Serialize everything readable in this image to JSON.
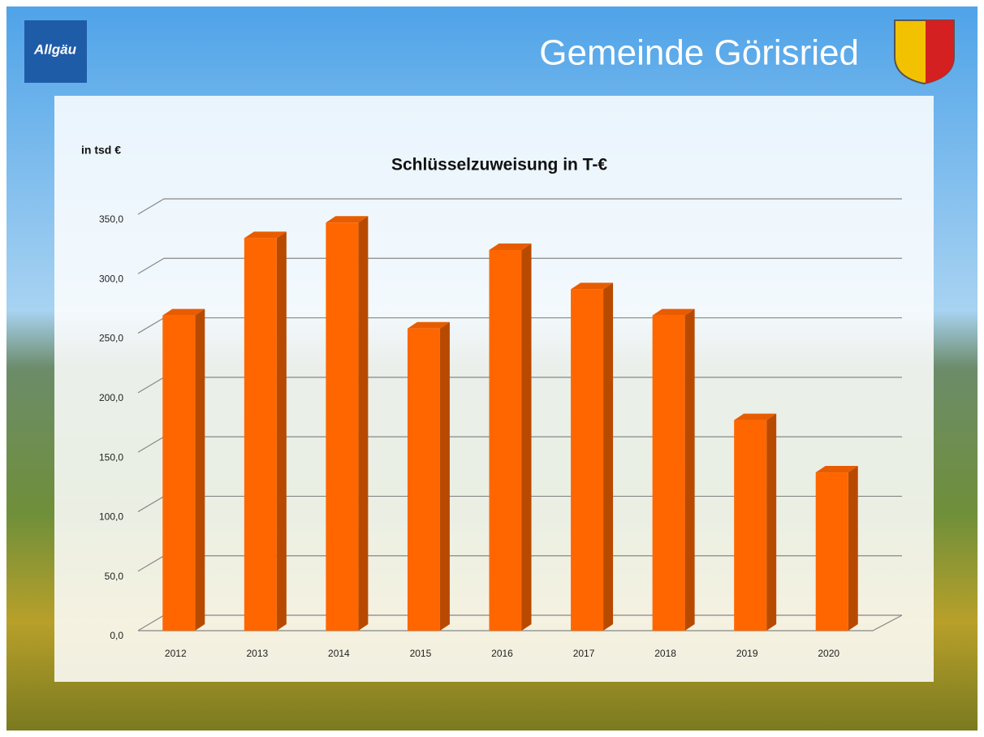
{
  "header": {
    "logo_text": "Allgäu",
    "title": "Gemeinde Görisried"
  },
  "chart_data": {
    "type": "bar",
    "title": "Schlüsselzuweisung  in T-€",
    "y_unit_label": "in tsd €",
    "categories": [
      "2012",
      "2013",
      "2014",
      "2015",
      "2016",
      "2017",
      "2018",
      "2019",
      "2020"
    ],
    "values": [
      265,
      330,
      343,
      254,
      320,
      287,
      265,
      177,
      133
    ],
    "color": "#ff6600",
    "ylim": [
      0,
      350
    ],
    "yticks": [
      {
        "value": 0,
        "label": "0,0"
      },
      {
        "value": 50,
        "label": "50,0"
      },
      {
        "value": 100,
        "label": "100,0"
      },
      {
        "value": 150,
        "label": "150,0"
      },
      {
        "value": 200,
        "label": "200,0"
      },
      {
        "value": 250,
        "label": "250,0"
      },
      {
        "value": 300,
        "label": "300,0"
      },
      {
        "value": 350,
        "label": "350,0"
      }
    ],
    "grid": true
  }
}
